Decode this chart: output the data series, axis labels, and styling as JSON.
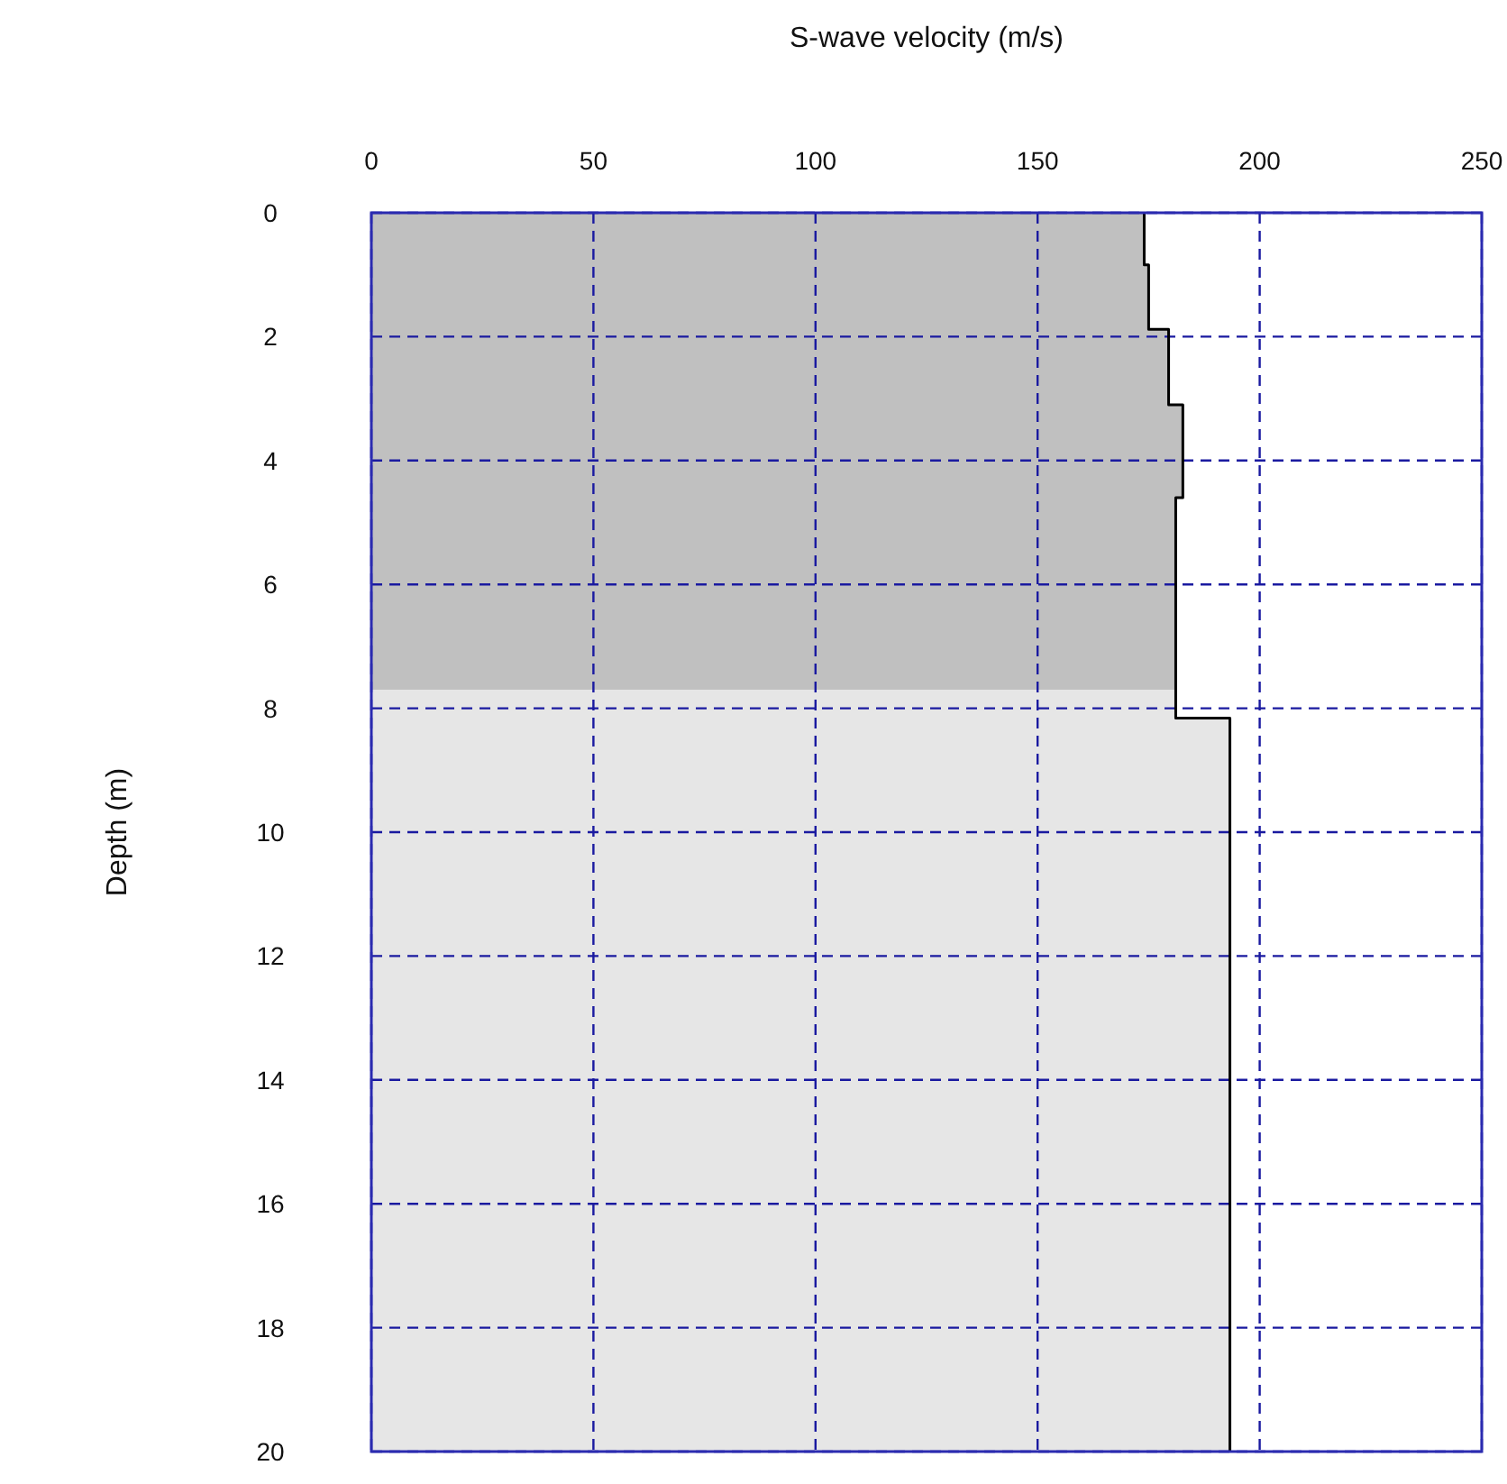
{
  "chart_data": {
    "type": "area",
    "orientation": "horizontal",
    "xlabel": "S-wave velocity (m/s)",
    "ylabel": "Depth (m)",
    "xlim": [
      0,
      250
    ],
    "xticks": [
      0,
      50,
      100,
      150,
      200,
      250
    ],
    "ylim": [
      20,
      0
    ],
    "yticks": [
      0,
      2,
      4,
      6,
      8,
      10,
      12,
      14,
      16,
      18,
      20
    ],
    "grid": true,
    "series": [
      {
        "color": "#c0c0c0",
        "x": [
          0,
          0.84,
          0.84,
          1.88,
          1.88,
          3.1,
          3.1,
          4.6,
          4.6,
          7.7
        ],
        "values": [
          174,
          174,
          175,
          175,
          179.5,
          179.5,
          182.7,
          182.7,
          181.1,
          181.1
        ]
      },
      {
        "color": "#e6e6e6",
        "x": [
          7.7,
          8.16,
          8.16,
          20
        ],
        "values": [
          181.1,
          181.1,
          193.3,
          193.3
        ]
      },
      {
        "type": "line",
        "color": "#000000",
        "x": [
          0,
          0.84,
          0.84,
          1.88,
          1.88,
          3.1,
          3.1,
          4.6,
          4.6,
          8.16,
          8.16,
          20
        ],
        "values": [
          174,
          174,
          175,
          175,
          179.5,
          179.5,
          182.7,
          182.7,
          181.1,
          181.1,
          193.3,
          193.3
        ]
      }
    ]
  }
}
